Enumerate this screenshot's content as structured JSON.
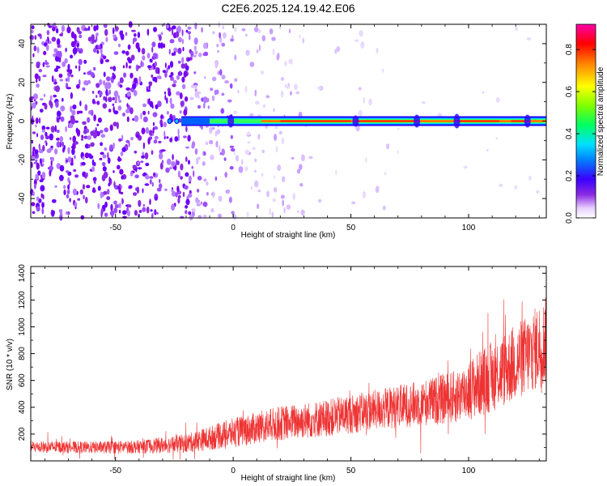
{
  "title": "C2E6.2025.124.19.42.E06",
  "chart_data": [
    {
      "type": "heatmap",
      "xlabel": "Height of straight line (km)",
      "ylabel": "Frequency (Hz)",
      "xlim": [
        -86,
        133
      ],
      "ylim": [
        -50,
        50
      ],
      "xticks": [
        -50,
        0,
        50,
        100
      ],
      "yticks": [
        -40,
        -20,
        0,
        20,
        40
      ],
      "description_points": {
        "signal_line_frequency": 0,
        "signal_start_x": -27,
        "noise_dense_until_x": -18,
        "noise_sparse_until_x": 70
      },
      "colorbar": {
        "label": "Normalized spectral amplitude",
        "range": [
          0,
          0.92
        ],
        "ticks": [
          0.0,
          0.2,
          0.4,
          0.6,
          0.8
        ],
        "colormap": "rainbow (white-violet-blue-cyan-green-yellow-orange-red-magenta)"
      }
    },
    {
      "type": "line",
      "xlabel": "Height of straight line (km)",
      "ylabel": "SNR (10 * v/v)",
      "xlim": [
        -86,
        133
      ],
      "ylim": [
        0,
        1450
      ],
      "xticks": [
        -50,
        0,
        50,
        100
      ],
      "yticks": [
        200,
        400,
        600,
        800,
        1000,
        1200,
        1400
      ],
      "color": "#ee3333",
      "envelope": {
        "x": [
          -86,
          -60,
          -40,
          -20,
          0,
          20,
          40,
          60,
          80,
          95,
          105,
          115,
          125,
          133
        ],
        "center": [
          105,
          100,
          105,
          130,
          210,
          280,
          320,
          380,
          430,
          480,
          580,
          680,
          790,
          900
        ],
        "spread": [
          45,
          45,
          50,
          70,
          110,
          130,
          140,
          150,
          170,
          200,
          250,
          280,
          300,
          330
        ]
      }
    }
  ]
}
